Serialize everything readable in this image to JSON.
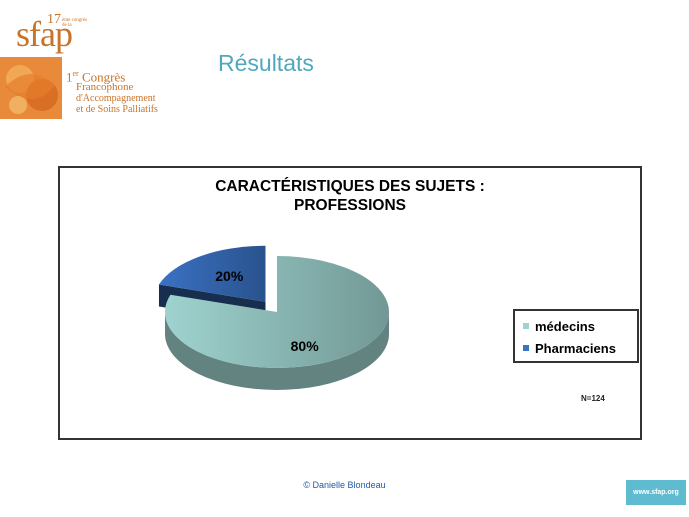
{
  "logo": {
    "number": "17",
    "small_text": "ème congrès de la",
    "name": "sfap",
    "line1_prefix": "1",
    "line1_sup": "er",
    "line1_rest": "Congrès",
    "line2": "Francophone",
    "line3": "d'Accompagnement",
    "line4": "et de Soins Palliatifs"
  },
  "page_title": "Résultats",
  "chart_data": {
    "type": "pie",
    "title": [
      "CARACTÉRISTIQUES DES SUJETS :",
      "PROFESSIONS"
    ],
    "categories": [
      "médecins",
      "Pharmaciens"
    ],
    "values": [
      80,
      20
    ],
    "data_labels": [
      "80%",
      "20%"
    ],
    "colors": [
      "#9fd3cf",
      "#3a72c4"
    ],
    "explode": [
      false,
      true
    ],
    "legend": "right",
    "annotation": "N=124"
  },
  "footer": {
    "copyright": "© Danielle  Blondeau"
  },
  "site_badge": "www.sfap.org"
}
